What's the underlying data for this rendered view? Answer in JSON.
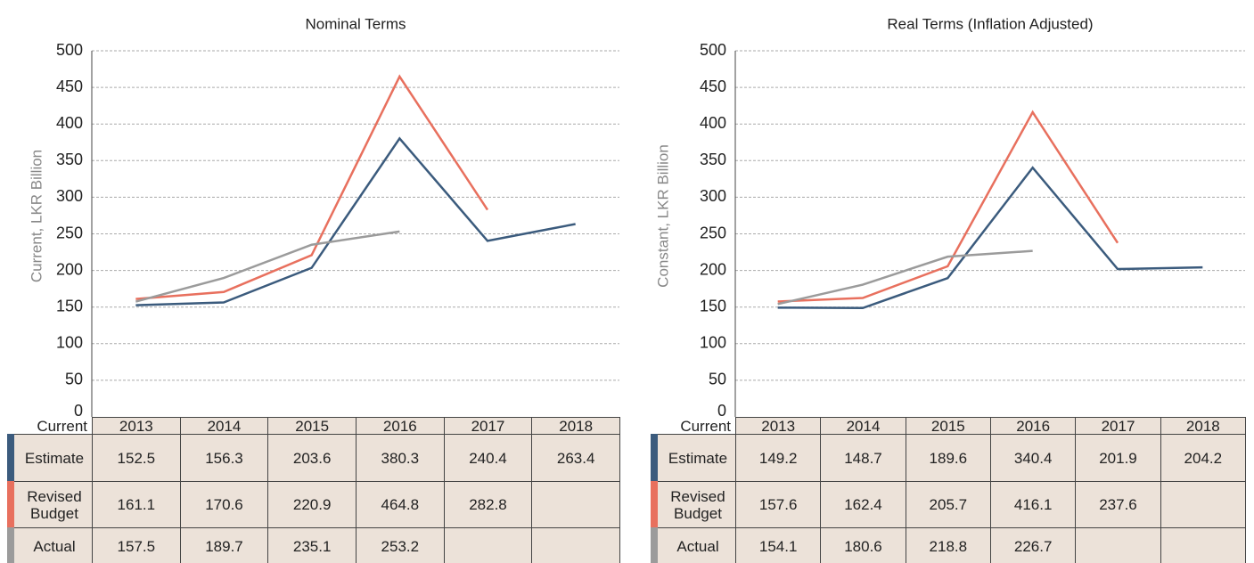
{
  "chart_data": [
    {
      "type": "line",
      "title": "Nominal Terms",
      "y_label": "Current, LKR Billion",
      "table_header": "Current",
      "categories": [
        "2013",
        "2014",
        "2015",
        "2016",
        "2017",
        "2018"
      ],
      "series": [
        {
          "name": "Estimate",
          "color": "#3b5b7d",
          "values": [
            152.5,
            156.3,
            203.6,
            380.3,
            240.4,
            263.4
          ]
        },
        {
          "name": "Revised Budget",
          "color": "#e8705e",
          "values": [
            161.1,
            170.6,
            220.9,
            464.8,
            282.8,
            null
          ]
        },
        {
          "name": "Actual",
          "color": "#9b9b9b",
          "values": [
            157.5,
            189.7,
            235.1,
            253.2,
            null,
            null
          ]
        }
      ],
      "ylim": [
        0,
        500
      ],
      "yticks": [
        0,
        50,
        100,
        150,
        200,
        250,
        300,
        350,
        400,
        450,
        500
      ],
      "grid": true
    },
    {
      "type": "line",
      "title": "Real Terms (Inflation Adjusted)",
      "y_label": "Constant, LKR Billion",
      "table_header": "Current",
      "categories": [
        "2013",
        "2014",
        "2015",
        "2016",
        "2017",
        "2018"
      ],
      "series": [
        {
          "name": "Estimate",
          "color": "#3b5b7d",
          "values": [
            149.2,
            148.7,
            189.6,
            340.4,
            201.9,
            204.2
          ]
        },
        {
          "name": "Revised Budget",
          "color": "#e8705e",
          "values": [
            157.6,
            162.4,
            205.7,
            416.1,
            237.6,
            null
          ]
        },
        {
          "name": "Actual",
          "color": "#9b9b9b",
          "values": [
            154.1,
            180.6,
            218.8,
            226.7,
            null,
            null
          ]
        }
      ],
      "ylim": [
        0,
        500
      ],
      "yticks": [
        0,
        50,
        100,
        150,
        200,
        250,
        300,
        350,
        400,
        450,
        500
      ],
      "grid": true
    }
  ]
}
